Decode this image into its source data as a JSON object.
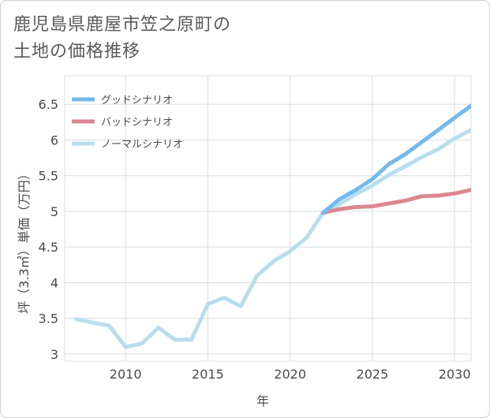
{
  "title_lines": [
    "鹿児島県鹿屋市笠之原町の",
    "土地の価格推移"
  ],
  "chart_data": {
    "type": "line",
    "xlabel": "年",
    "ylabel": "坪（3.3㎡）単価（万円）",
    "xlim": [
      2006.3,
      2031
    ],
    "ylim": [
      2.9,
      6.9
    ],
    "x_ticks": [
      2010,
      2015,
      2020,
      2025,
      2030
    ],
    "y_ticks": [
      3,
      3.5,
      4,
      4.5,
      5,
      5.5,
      6,
      6.5
    ],
    "y_tick_labels": [
      "3",
      "3.5",
      "4",
      "4.5",
      "5",
      "5.5",
      "6",
      "6.5"
    ],
    "grid": true,
    "legend_position": "top-left",
    "series": [
      {
        "name": "グッドシナリオ",
        "color": "#72baeb",
        "x": [
          2022,
          2023,
          2024,
          2025,
          2026,
          2027,
          2028,
          2029,
          2030,
          2031
        ],
        "values": [
          4.98,
          5.17,
          5.3,
          5.45,
          5.66,
          5.8,
          5.97,
          6.14,
          6.31,
          6.48
        ]
      },
      {
        "name": "バッドシナリオ",
        "color": "#dc8790",
        "x": [
          2022,
          2023,
          2024,
          2025,
          2026,
          2027,
          2028,
          2029,
          2030,
          2031
        ],
        "values": [
          4.98,
          5.03,
          5.06,
          5.07,
          5.11,
          5.15,
          5.21,
          5.22,
          5.25,
          5.3
        ]
      },
      {
        "name": "ノーマルシナリオ",
        "color": "#b8deed",
        "x": [
          2007,
          2008,
          2009,
          2010,
          2011,
          2012,
          2013,
          2014,
          2015,
          2016,
          2017,
          2018,
          2019,
          2020,
          2021,
          2022,
          2023,
          2024,
          2025,
          2026,
          2027,
          2028,
          2029,
          2030,
          2031
        ],
        "values": [
          3.49,
          3.44,
          3.4,
          3.1,
          3.15,
          3.37,
          3.2,
          3.2,
          3.7,
          3.79,
          3.67,
          4.1,
          4.3,
          4.44,
          4.63,
          4.98,
          5.1,
          5.24,
          5.36,
          5.51,
          5.63,
          5.76,
          5.87,
          6.02,
          6.14
        ]
      }
    ]
  }
}
